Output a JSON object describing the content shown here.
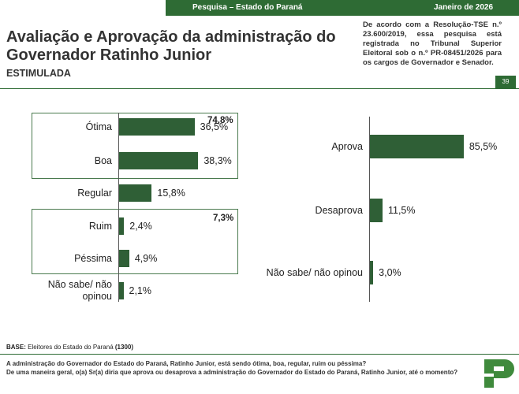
{
  "header": {
    "survey": "Pesquisa – Estado do Paraná",
    "date": "Janeiro de 2026",
    "title": "Avaliação e Aprovação da administração do Governador Ratinho Junior",
    "subtitle": "ESTIMULADA",
    "note": "De acordo com a Resolução-TSE n.º 23.600/2019, essa pesquisa está registrada no Tribunal Superior Eleitoral sob o n.º PR-08451/2026 para os cargos de Governador e Senador.",
    "page": "39"
  },
  "chart_data": [
    {
      "type": "bar",
      "orientation": "horizontal",
      "color": "#2f5f36",
      "categories": [
        "Ótima",
        "Boa",
        "Regular",
        "Ruim",
        "Péssima",
        "Não sabe/ não opinou"
      ],
      "values": [
        36.5,
        38.3,
        15.8,
        2.4,
        4.9,
        2.1
      ],
      "value_labels": [
        "36,5%",
        "38,3%",
        "15,8%",
        "2,4%",
        "4,9%",
        "2,1%"
      ],
      "group_totals": [
        "74,8%",
        "7,3%"
      ]
    },
    {
      "type": "bar",
      "orientation": "horizontal",
      "color": "#2f5f36",
      "categories": [
        "Aprova",
        "Desaprova",
        "Não sabe/ não opinou"
      ],
      "values": [
        85.5,
        11.5,
        3.0
      ],
      "value_labels": [
        "85,5%",
        "11,5%",
        "3,0%"
      ]
    }
  ],
  "footer": {
    "base_label": "BASE:",
    "base_text": "Eleitores do Estado do Paraná",
    "base_n": "(1300)",
    "questions": [
      "A administração do Governador do Estado do Paraná, Ratinho Junior, está sendo ótima, boa, regular, ruim ou péssima?",
      "De uma maneira geral, o(a) Sr(a) diria que aprova ou desaprova a administração do Governador do Estado do Paraná, Ratinho Junior, até o momento?"
    ]
  }
}
